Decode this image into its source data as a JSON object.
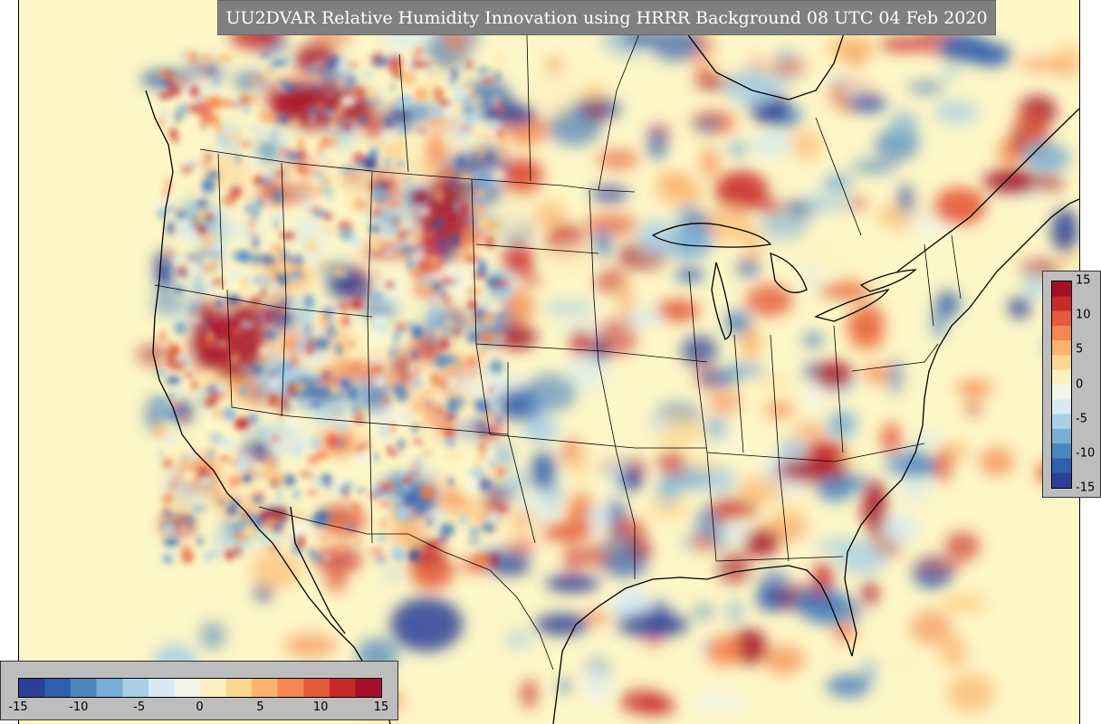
{
  "title": "UU2DVAR Relative Humidity Innovation using HRRR Background 08 UTC 04 Feb 2020",
  "colorbar": {
    "min": -15,
    "max": 15,
    "colors": [
      "#2c3f96",
      "#3060ad",
      "#4d85bd",
      "#79aed2",
      "#a9d0e4",
      "#d6ebf1",
      "#f2f7ea",
      "#fdf1c1",
      "#fdd792",
      "#fbb36c",
      "#f4874f",
      "#e45a3a",
      "#c82a28",
      "#a50f26"
    ],
    "horizontal_ticks": [
      "-15",
      "-10",
      "-5",
      "0",
      "5",
      "10",
      "15"
    ],
    "vertical_ticks": [
      "15",
      "10",
      "5",
      "0",
      "-5",
      "-10",
      "-15"
    ]
  },
  "map": {
    "background": "#fdf6c6",
    "coast_color": "#000000"
  }
}
